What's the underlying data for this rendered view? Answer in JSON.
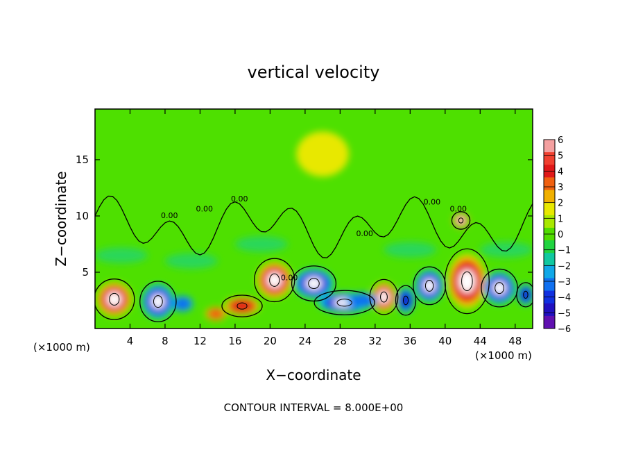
{
  "chart_data": {
    "type": "heatmap",
    "title": "vertical velocity",
    "xlabel": "X−coordinate",
    "ylabel": "Z−coordinate",
    "x_unit": "(×1000 m)",
    "y_unit": "(×1000 m)",
    "xlim": [
      0,
      50
    ],
    "ylim": [
      0,
      19.5
    ],
    "x_ticks": [
      4,
      8,
      12,
      16,
      20,
      24,
      28,
      32,
      36,
      40,
      44,
      48
    ],
    "y_ticks": [
      5,
      10,
      15
    ],
    "colorbar": {
      "min": -6,
      "max": 6,
      "ticks": [
        "6",
        "5",
        "4",
        "3",
        "2",
        "1",
        "0",
        "−1",
        "−2",
        "−3",
        "−4",
        "−5",
        "−6"
      ],
      "colors": [
        "#f4a0a0",
        "#f04030",
        "#e01818",
        "#f06010",
        "#f0b000",
        "#e8e800",
        "#a8e800",
        "#50dc00",
        "#20d440",
        "#10c8a0",
        "#10a8e8",
        "#1070f0",
        "#1030e0",
        "#2010c0",
        "#6010b0"
      ]
    },
    "contour_labels": [
      "0.00",
      "0.00",
      "0.00",
      "0.00",
      "0.00",
      "0.00",
      "0.00"
    ],
    "annotation": "CONTOUR INTERVAL = 8.000E+00",
    "features": [
      {
        "sign": "up",
        "x": 2.2,
        "z": 2.6,
        "w": 2.0,
        "h": 3.0,
        "peak": 6
      },
      {
        "sign": "down",
        "x": 7.2,
        "z": 2.4,
        "w": 1.8,
        "h": 3.0,
        "peak": -6
      },
      {
        "sign": "up",
        "x": 13.8,
        "z": 1.3,
        "w": 1.2,
        "h": 1.2,
        "peak": 3
      },
      {
        "sign": "up",
        "x": 16.8,
        "z": 2.0,
        "w": 2.0,
        "h": 1.6,
        "peak": 4
      },
      {
        "sign": "up",
        "x": 20.5,
        "z": 4.3,
        "w": 2.0,
        "h": 3.2,
        "peak": 6
      },
      {
        "sign": "down",
        "x": 25.0,
        "z": 4.0,
        "w": 2.2,
        "h": 2.6,
        "peak": -6
      },
      {
        "sign": "down",
        "x": 28.5,
        "z": 2.3,
        "w": 3.0,
        "h": 1.8,
        "peak": -5
      },
      {
        "sign": "up",
        "x": 33.0,
        "z": 2.8,
        "w": 1.4,
        "h": 2.6,
        "peak": 6
      },
      {
        "sign": "down",
        "x": 35.5,
        "z": 2.5,
        "w": 1.0,
        "h": 2.2,
        "peak": -4
      },
      {
        "sign": "down",
        "x": 38.2,
        "z": 3.8,
        "w": 1.6,
        "h": 2.8,
        "peak": -6
      },
      {
        "sign": "up",
        "x": 42.5,
        "z": 4.2,
        "w": 2.2,
        "h": 4.8,
        "peak": 6
      },
      {
        "sign": "up",
        "x": 41.8,
        "z": 9.6,
        "w": 0.9,
        "h": 1.3,
        "peak": 5
      },
      {
        "sign": "down",
        "x": 46.2,
        "z": 3.6,
        "w": 1.8,
        "h": 2.8,
        "peak": -6
      },
      {
        "sign": "down",
        "x": 49.2,
        "z": 3.0,
        "w": 0.9,
        "h": 1.8,
        "peak": -4
      },
      {
        "sign": "down",
        "x": 10.0,
        "z": 2.2,
        "w": 1.2,
        "h": 1.4,
        "peak": -3
      },
      {
        "sign": "down",
        "x": 30.5,
        "z": 2.5,
        "w": 1.8,
        "h": 1.4,
        "peak": -3
      },
      {
        "sign": "up",
        "x": 26.0,
        "z": 15.5,
        "w": 3.0,
        "h": 4.0,
        "peak": 1
      }
    ]
  }
}
